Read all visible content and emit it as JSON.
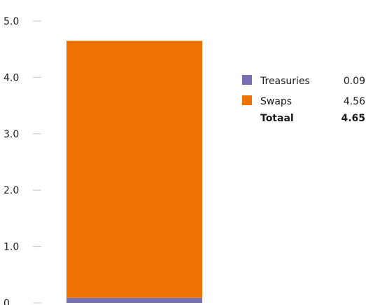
{
  "chart_data": {
    "type": "bar",
    "stacked": true,
    "categories": [
      ""
    ],
    "series": [
      {
        "name": "Treasuries",
        "values": [
          0.09
        ],
        "color": "#7670b2"
      },
      {
        "name": "Swaps",
        "values": [
          4.56
        ],
        "color": "#ee7203"
      }
    ],
    "total": {
      "label": "Totaal",
      "value": "4.65"
    },
    "ylim": [
      0,
      5.0
    ],
    "yticks": [
      {
        "value": 0,
        "label": "0"
      },
      {
        "value": 1,
        "label": "1.0"
      },
      {
        "value": 2,
        "label": "2.0"
      },
      {
        "value": 3,
        "label": "3.0"
      },
      {
        "value": 4,
        "label": "4.0"
      },
      {
        "value": 5,
        "label": "5.0"
      }
    ],
    "title": "",
    "xlabel": "",
    "ylabel": "",
    "grid": false,
    "legend": {
      "position": "right",
      "entries": [
        {
          "name": "Treasuries",
          "value": "0.09",
          "color": "#7670b2"
        },
        {
          "name": "Swaps",
          "value": "4.56",
          "color": "#ee7203"
        }
      ]
    },
    "title_color": "#ee7203"
  }
}
